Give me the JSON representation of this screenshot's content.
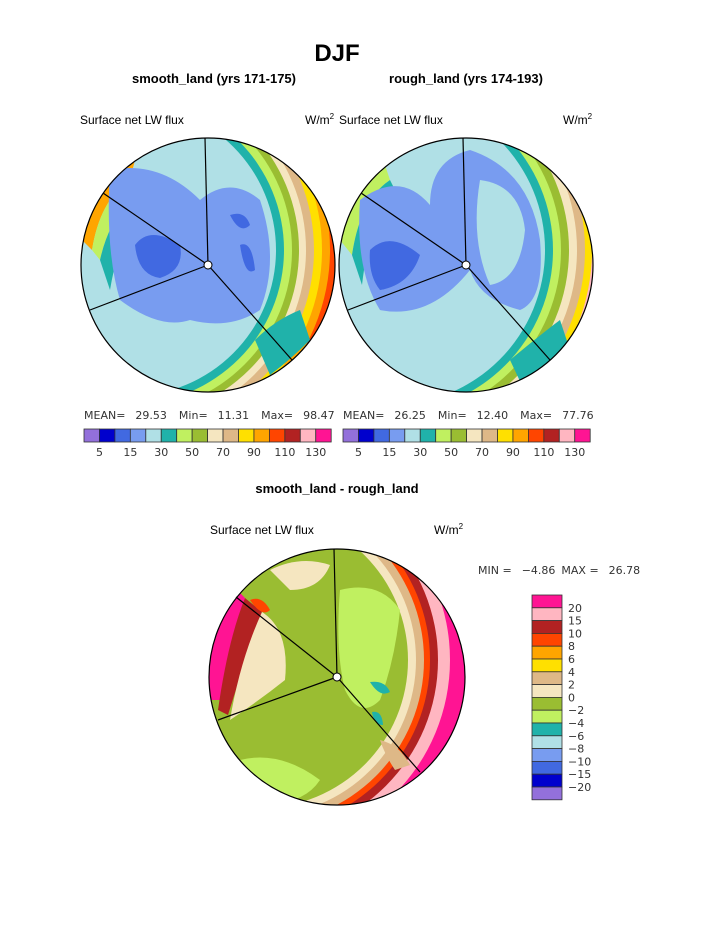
{
  "chart_data": {
    "type": "heatmap",
    "title": "DJF",
    "panels": [
      {
        "title": "smooth_land (yrs 171-175)",
        "left_label": "Surface net LW flux",
        "units": "W/m",
        "units_exp": "2",
        "stats": {
          "mean_label": "MEAN=",
          "mean": "29.53",
          "min_label": "Min=",
          "min": "11.31",
          "max_label": "Max=",
          "max": "98.47"
        },
        "colorbar_labels": [
          "5",
          "15",
          "30",
          "50",
          "70",
          "90",
          "110",
          "130"
        ]
      },
      {
        "title": "rough_land (yrs 174-193)",
        "left_label": "Surface net LW flux",
        "units": "W/m",
        "units_exp": "2",
        "stats": {
          "mean_label": "MEAN=",
          "mean": "26.25",
          "min_label": "Min=",
          "min": "12.40",
          "max_label": "Max=",
          "max": "77.76"
        },
        "colorbar_labels": [
          "5",
          "15",
          "30",
          "50",
          "70",
          "90",
          "110",
          "130"
        ]
      },
      {
        "title": "smooth_land - rough_land",
        "left_label": "Surface net LW flux",
        "units": "W/m",
        "units_exp": "2",
        "stats": {
          "min_label": "MIN =",
          "min": "−4.86",
          "max_label": "MAX =",
          "max": "26.78"
        },
        "colorbar_labels": [
          "20",
          "15",
          "10",
          "8",
          "6",
          "4",
          "2",
          "0",
          "−2",
          "−4",
          "−6",
          "−8",
          "−10",
          "−15",
          "−20"
        ]
      }
    ],
    "abs_colors": [
      "#9370db",
      "#0000cd",
      "#4169e1",
      "#789cf0",
      "#b0e0e6",
      "#20b2aa",
      "#c0f060",
      "#9abd32",
      "#f5e6c0",
      "#deb887",
      "#ffe000",
      "#ffa500",
      "#ff4500",
      "#b22222",
      "#ffb6c1",
      "#ff1493"
    ],
    "diff_colors": [
      "#ff1493",
      "#ffb6c1",
      "#b22222",
      "#ff4500",
      "#ffa500",
      "#ffe000",
      "#deb887",
      "#f5e6c0",
      "#9abd32",
      "#c0f060",
      "#20b2aa",
      "#b0e0e6",
      "#789cf0",
      "#4169e1",
      "#0000cd",
      "#9370db"
    ]
  }
}
